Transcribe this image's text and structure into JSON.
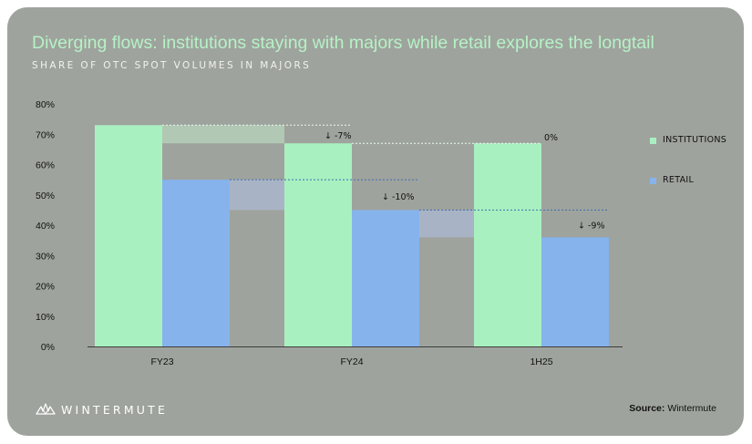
{
  "title": "Diverging flows: institutions staying with majors while retail explores the longtail",
  "subtitle": "SHARE OF OTC SPOT VOLUMES IN MAJORS",
  "brand": {
    "name": "WINTERMUTE",
    "logo_icon": "wintermute-logo-icon"
  },
  "source": {
    "label": "Source:",
    "value": "Wintermute"
  },
  "legend": [
    {
      "label": "INSTITUTIONS",
      "color": "#a9f0c0"
    },
    {
      "label": "RETAIL",
      "color": "#86b3ec"
    }
  ],
  "colors": {
    "institutions": "#a9f0c0",
    "retail": "#86b3ec",
    "background": "#9fa39d"
  },
  "chart_data": {
    "type": "bar",
    "categories": [
      "FY23",
      "FY24",
      "1H25"
    ],
    "series": [
      {
        "name": "INSTITUTIONS",
        "values": [
          73,
          67,
          67
        ]
      },
      {
        "name": "RETAIL",
        "values": [
          55,
          45,
          36
        ]
      }
    ],
    "y_ticks": [
      "0%",
      "10%",
      "20%",
      "30%",
      "40%",
      "50%",
      "60%",
      "70%",
      "80%"
    ],
    "ylim": [
      0,
      80
    ],
    "grid": false,
    "legend_position": "right",
    "annotations": [
      {
        "series": "INSTITUTIONS",
        "from": "FY23",
        "to": "FY24",
        "text": "↓ -7%"
      },
      {
        "series": "INSTITUTIONS",
        "from": "FY24",
        "to": "1H25",
        "text": "0%"
      },
      {
        "series": "RETAIL",
        "from": "FY23",
        "to": "FY24",
        "text": "↓ -10%"
      },
      {
        "series": "RETAIL",
        "from": "FY24",
        "to": "1H25",
        "text": "↓ -9%"
      }
    ]
  }
}
